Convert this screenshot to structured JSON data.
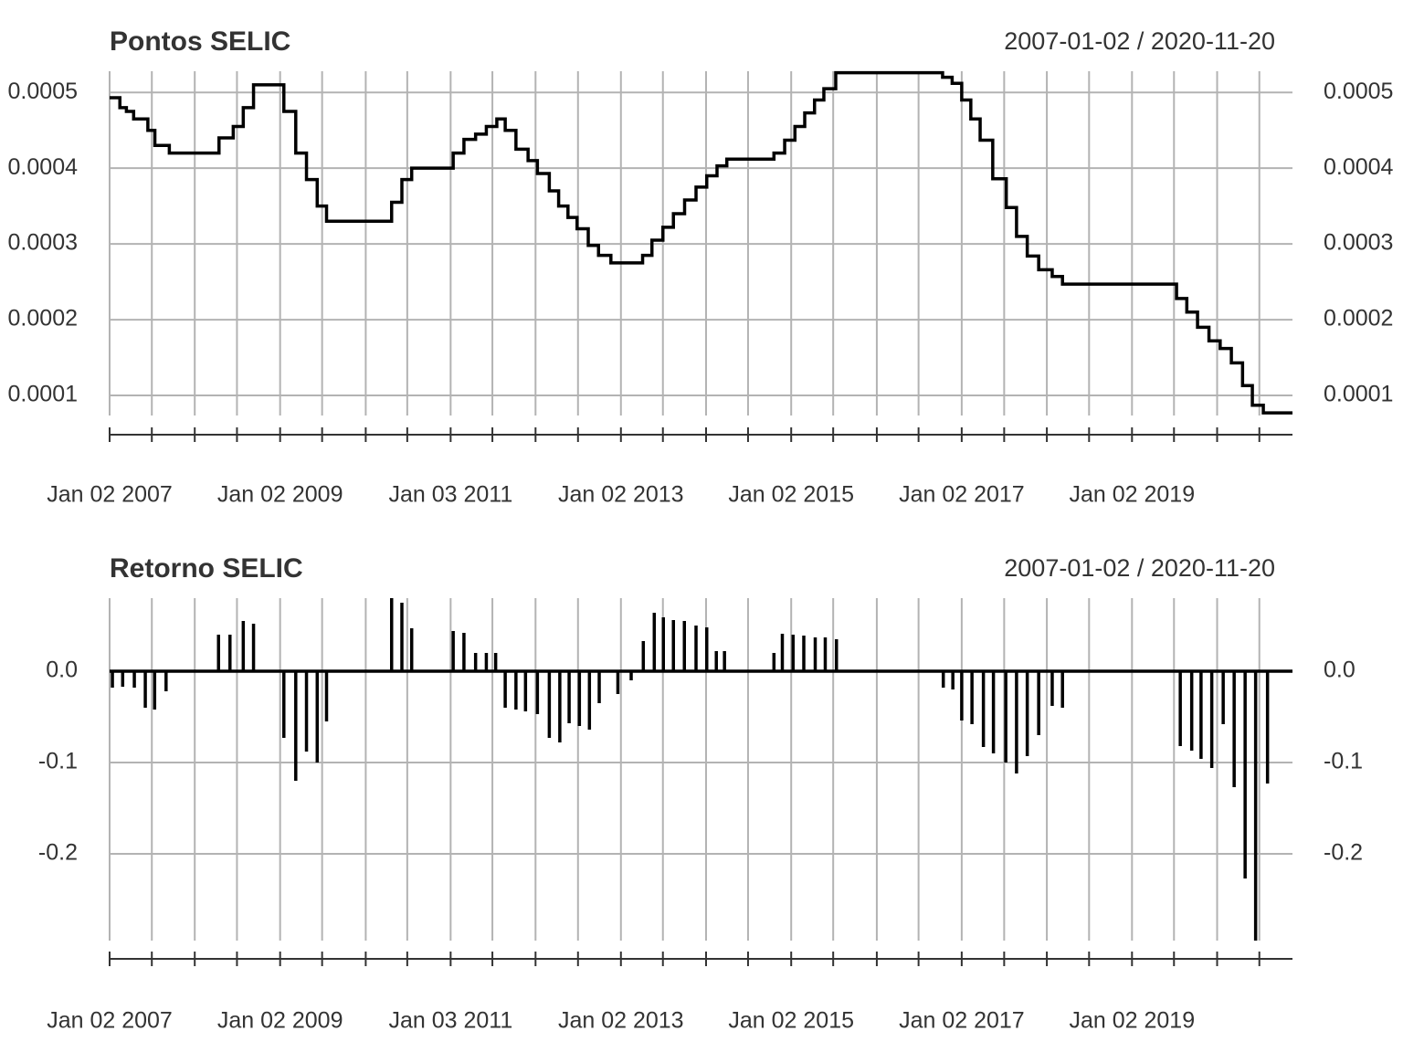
{
  "chart_data": [
    {
      "type": "line",
      "step": true,
      "title": "Pontos SELIC",
      "date_range": "2007-01-02 / 2020-11-20",
      "color": "#000000",
      "grid": true,
      "xlim": [
        "2007-01-02",
        "2020-11-20"
      ],
      "ylim": [
        7.35e-05,
        0.000528
      ],
      "yticks": [
        0.0001,
        0.0002,
        0.0003,
        0.0004,
        0.0005
      ],
      "xticks": [
        {
          "value": "2007-01-02",
          "label": "Jan 02 2007"
        },
        {
          "value": "2009-01-02",
          "label": "Jan 02 2009"
        },
        {
          "value": "2011-01-03",
          "label": "Jan 03 2011"
        },
        {
          "value": "2013-01-02",
          "label": "Jan 02 2013"
        },
        {
          "value": "2015-01-02",
          "label": "Jan 02 2015"
        },
        {
          "value": "2017-01-02",
          "label": "Jan 02 2017"
        },
        {
          "value": "2019-01-02",
          "label": "Jan 02 2019"
        }
      ],
      "xminor": [
        "2007-07-02",
        "2008-01-02",
        "2008-07-01",
        "2009-07-01",
        "2010-01-04",
        "2010-07-01",
        "2011-07-01",
        "2012-01-02",
        "2012-07-02",
        "2013-07-01",
        "2014-01-02",
        "2014-07-01",
        "2015-07-01",
        "2016-01-04",
        "2016-07-01",
        "2017-07-03",
        "2018-01-02",
        "2018-07-02",
        "2019-07-01",
        "2020-01-02",
        "2020-07-01"
      ],
      "x": [
        "2007-01-02",
        "2007-02-15",
        "2007-03-15",
        "2007-04-15",
        "2007-06-15",
        "2007-07-15",
        "2007-09-15",
        "2008-04-15",
        "2008-06-15",
        "2008-07-28",
        "2008-09-10",
        "2009-01-18",
        "2009-03-10",
        "2009-04-25",
        "2009-06-10",
        "2009-07-20",
        "2010-04-25",
        "2010-06-08",
        "2010-07-20",
        "2011-01-14",
        "2011-03-01",
        "2011-04-20",
        "2011-06-05",
        "2011-07-20",
        "2011-08-25",
        "2011-10-10",
        "2011-12-01",
        "2012-01-10",
        "2012-03-01",
        "2012-04-10",
        "2012-05-20",
        "2012-06-28",
        "2012-08-15",
        "2012-09-28",
        "2012-11-20",
        "2013-04-05",
        "2013-05-15",
        "2013-07-01",
        "2013-08-15",
        "2013-10-02",
        "2013-11-20",
        "2014-01-05",
        "2014-02-18",
        "2014-04-01",
        "2014-10-20",
        "2014-12-05",
        "2015-01-18",
        "2015-03-01",
        "2015-04-12",
        "2015-05-22",
        "2015-07-12",
        "2016-10-12",
        "2016-11-22",
        "2017-01-02",
        "2017-02-10",
        "2017-03-22",
        "2017-05-15",
        "2017-07-12",
        "2017-08-25",
        "2017-10-10",
        "2017-11-28",
        "2018-01-25",
        "2018-03-10",
        "2019-07-12",
        "2019-08-25",
        "2019-10-10",
        "2019-11-28",
        "2020-01-15",
        "2020-03-03",
        "2020-04-20",
        "2020-06-01",
        "2020-07-18",
        "2020-11-20"
      ],
      "values": [
        0.000493,
        0.00048,
        0.000475,
        0.000465,
        0.00045,
        0.00043,
        0.00042,
        0.00044,
        0.000455,
        0.00048,
        0.00051,
        0.000475,
        0.00042,
        0.000385,
        0.00035,
        0.00033,
        0.000355,
        0.000385,
        0.0004,
        0.00042,
        0.000438,
        0.000445,
        0.000455,
        0.000465,
        0.00045,
        0.000425,
        0.00041,
        0.000393,
        0.00037,
        0.00035,
        0.000335,
        0.00032,
        0.000298,
        0.000285,
        0.000275,
        0.000285,
        0.000305,
        0.000322,
        0.00034,
        0.000358,
        0.000375,
        0.00039,
        0.000403,
        0.000412,
        0.00042,
        0.000437,
        0.000455,
        0.000473,
        0.00049,
        0.000505,
        0.000526,
        0.00052,
        0.000512,
        0.00049,
        0.000465,
        0.000437,
        0.000386,
        0.000348,
        0.00031,
        0.000284,
        0.000266,
        0.000257,
        0.000247,
        0.000228,
        0.00021,
        0.00019,
        0.000172,
        0.000162,
        0.000143,
        0.000113,
        8.7e-05,
        7.7e-05,
        7.7e-05
      ]
    },
    {
      "type": "bar",
      "title": "Retorno SELIC",
      "date_range": "2007-01-02 / 2020-11-20",
      "color": "#000000",
      "grid": true,
      "xlim": [
        "2007-01-02",
        "2020-11-20"
      ],
      "ylim": [
        -0.295,
        0.08
      ],
      "yticks": [
        {
          "value": 0,
          "label": "0.0"
        },
        -0.1,
        -0.2
      ],
      "xticks": [
        {
          "value": "2007-01-02",
          "label": "Jan 02 2007"
        },
        {
          "value": "2009-01-02",
          "label": "Jan 02 2009"
        },
        {
          "value": "2011-01-03",
          "label": "Jan 03 2011"
        },
        {
          "value": "2013-01-02",
          "label": "Jan 02 2013"
        },
        {
          "value": "2015-01-02",
          "label": "Jan 02 2015"
        },
        {
          "value": "2017-01-02",
          "label": "Jan 02 2017"
        },
        {
          "value": "2019-01-02",
          "label": "Jan 02 2019"
        }
      ],
      "xminor": [
        "2007-07-02",
        "2008-01-02",
        "2008-07-01",
        "2009-07-01",
        "2010-01-04",
        "2010-07-01",
        "2011-07-01",
        "2012-01-02",
        "2012-07-02",
        "2013-07-01",
        "2014-01-02",
        "2014-07-01",
        "2015-07-01",
        "2016-01-04",
        "2016-07-01",
        "2017-07-03",
        "2018-01-02",
        "2018-07-02",
        "2019-07-01",
        "2020-01-02",
        "2020-07-01"
      ],
      "x": [
        "2007-01-14",
        "2007-02-27",
        "2007-04-18",
        "2007-06-04",
        "2007-07-14",
        "2007-09-01",
        "2008-04-13",
        "2008-06-01",
        "2008-07-28",
        "2008-09-10",
        "2009-01-18",
        "2009-03-10",
        "2009-04-25",
        "2009-06-10",
        "2009-07-20",
        "2010-04-25",
        "2010-06-08",
        "2010-07-20",
        "2011-01-14",
        "2011-03-01",
        "2011-04-20",
        "2011-06-05",
        "2011-07-15",
        "2011-08-25",
        "2011-10-10",
        "2011-11-20",
        "2012-01-10",
        "2012-03-01",
        "2012-04-15",
        "2012-05-25",
        "2012-07-08",
        "2012-08-20",
        "2012-10-01",
        "2012-12-20",
        "2013-02-15",
        "2013-04-08",
        "2013-05-25",
        "2013-07-03",
        "2013-08-15",
        "2013-10-01",
        "2013-11-20",
        "2014-01-05",
        "2014-02-15",
        "2014-03-22",
        "2014-10-20",
        "2014-11-25",
        "2015-01-10",
        "2015-02-25",
        "2015-04-15",
        "2015-05-28",
        "2015-07-15",
        "2016-10-15",
        "2016-11-25",
        "2017-01-02",
        "2017-02-15",
        "2017-04-05",
        "2017-05-18",
        "2017-07-10",
        "2017-08-25",
        "2017-10-10",
        "2017-11-28",
        "2018-01-25",
        "2018-03-10",
        "2019-07-28",
        "2019-09-15",
        "2019-10-25",
        "2019-12-10",
        "2020-01-28",
        "2020-03-15",
        "2020-05-01",
        "2020-06-15",
        "2020-08-05"
      ],
      "values": [
        -0.018,
        -0.017,
        -0.018,
        -0.04,
        -0.042,
        -0.022,
        0.04,
        0.04,
        0.055,
        0.052,
        -0.073,
        -0.12,
        -0.088,
        -0.1,
        -0.055,
        0.08,
        0.075,
        0.047,
        0.044,
        0.042,
        0.02,
        0.02,
        0.02,
        -0.04,
        -0.042,
        -0.044,
        -0.047,
        -0.073,
        -0.078,
        -0.057,
        -0.06,
        -0.064,
        -0.035,
        -0.025,
        -0.01,
        0.033,
        0.064,
        0.059,
        0.056,
        0.055,
        0.05,
        0.048,
        0.022,
        0.022,
        0.02,
        0.041,
        0.04,
        0.039,
        0.037,
        0.037,
        0.035,
        -0.018,
        -0.02,
        -0.054,
        -0.058,
        -0.083,
        -0.09,
        -0.1,
        -0.112,
        -0.093,
        -0.07,
        -0.038,
        -0.04,
        -0.082,
        -0.087,
        -0.096,
        -0.106,
        -0.058,
        -0.127,
        -0.227,
        -0.295,
        -0.123
      ]
    }
  ]
}
